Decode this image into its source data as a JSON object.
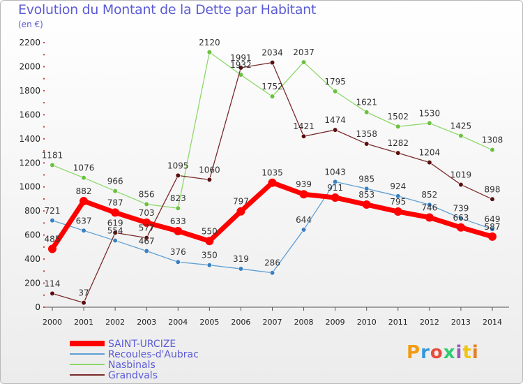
{
  "title": "Evolution du Montant de la Dette par Habitant",
  "subtitle": "(en €)",
  "logo": {
    "text": "Proxiti",
    "colors": [
      "#f39c12",
      "#3498db",
      "#e74c3c",
      "#2ecc71",
      "#9b59b6",
      "#f1c40f",
      "#e67e22"
    ]
  },
  "chart_data": {
    "type": "line",
    "x": [
      "2000",
      "2001",
      "2002",
      "2003",
      "2004",
      "2005",
      "2006",
      "2007",
      "2008",
      "2009",
      "2010",
      "2011",
      "2012",
      "2013",
      "2014"
    ],
    "ylim": [
      0,
      2200
    ],
    "yticks": [
      "0",
      "200",
      "400",
      "600",
      "800",
      "1000",
      "1200",
      "1400",
      "1600",
      "1800",
      "2000",
      "2200"
    ],
    "grid": false,
    "legend_position": "bottom-left",
    "series": [
      {
        "name": "Recoules-d'Aubrac",
        "color": "#5f9fd3",
        "dot": "#3a7fc0",
        "width": 1.3,
        "values": [
          721,
          637,
          554,
          467,
          376,
          350,
          319,
          286,
          644,
          1043,
          985,
          924,
          852,
          739,
          649
        ],
        "labels": [
          "721",
          "637",
          "554",
          "467",
          "376",
          "350",
          "319",
          "286",
          "644",
          "1043",
          "985",
          "924",
          "852",
          "739",
          "649"
        ]
      },
      {
        "name": "Nasbinals",
        "color": "#8ed86a",
        "dot": "#6cc040",
        "width": 1.3,
        "values": [
          1181,
          1076,
          966,
          856,
          823,
          2120,
          1932,
          1752,
          2037,
          1795,
          1621,
          1502,
          1530,
          1425,
          1308
        ],
        "labels": [
          "1181",
          "1076",
          "966",
          "856",
          "823",
          "2120",
          "1932",
          "1752",
          "2037",
          "1795",
          "1621",
          "1502",
          "1530",
          "1425",
          "1308"
        ]
      },
      {
        "name": "Grandvals",
        "color": "#7a2a2a",
        "dot": "#5a1010",
        "width": 1.3,
        "values": [
          114,
          37,
          619,
          577,
          1095,
          1060,
          1991,
          2034,
          1421,
          1474,
          1358,
          1282,
          1204,
          1019,
          898
        ],
        "labels": [
          "114",
          "37",
          "619",
          "577",
          "1095",
          "1060",
          "1991",
          "2034",
          "1421",
          "1474",
          "1358",
          "1282",
          "1204",
          "1019",
          "898"
        ]
      },
      {
        "name": "SAINT-URCIZE",
        "color": "#ff0000",
        "dot": "#ff0000",
        "width": 7,
        "values": [
          485,
          882,
          787,
          703,
          633,
          550,
          797,
          1035,
          939,
          911,
          853,
          795,
          746,
          663,
          587
        ],
        "labels": [
          "485",
          "882",
          "787",
          "703",
          "633",
          "550",
          "797",
          "1035",
          "939",
          "911",
          "853",
          "795",
          "746",
          "663",
          "587"
        ]
      }
    ],
    "legend_order": [
      "SAINT-URCIZE",
      "Recoules-d'Aubrac",
      "Nasbinals",
      "Grandvals"
    ]
  }
}
